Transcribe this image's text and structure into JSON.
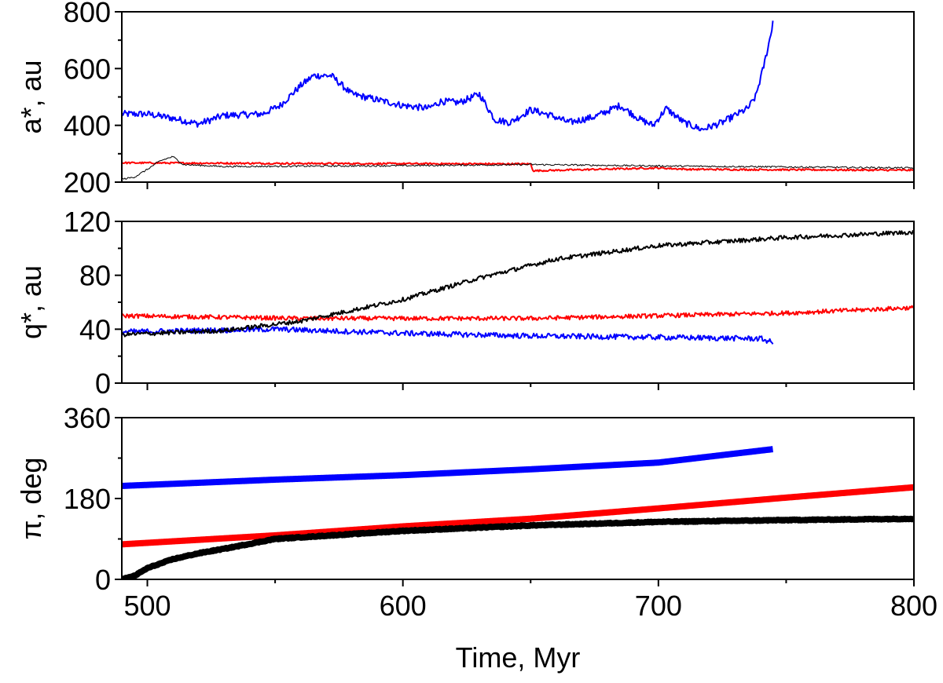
{
  "chart_data": {
    "type": "line",
    "xlabel": "Time, Myr",
    "xlim": [
      490,
      800
    ],
    "xticks": [
      500,
      600,
      700,
      800
    ],
    "colors": {
      "blue": "#0000ff",
      "red": "#ff0000",
      "black": "#000000"
    },
    "panels": [
      {
        "id": "a",
        "ylabel": "a*, au",
        "ylim": [
          200,
          800
        ],
        "yticks": [
          200,
          400,
          600,
          800
        ],
        "series": [
          {
            "name": "blue",
            "color": "#0000ff",
            "stroke": 2,
            "noise": 12,
            "points": [
              [
                490,
                440
              ],
              [
                500,
                440
              ],
              [
                510,
                425
              ],
              [
                520,
                405
              ],
              [
                530,
                435
              ],
              [
                545,
                440
              ],
              [
                552,
                470
              ],
              [
                560,
                540
              ],
              [
                565,
                575
              ],
              [
                572,
                575
              ],
              [
                580,
                510
              ],
              [
                590,
                490
              ],
              [
                600,
                470
              ],
              [
                610,
                460
              ],
              [
                615,
                485
              ],
              [
                622,
                480
              ],
              [
                630,
                510
              ],
              [
                636,
                420
              ],
              [
                642,
                410
              ],
              [
                650,
                455
              ],
              [
                658,
                435
              ],
              [
                665,
                410
              ],
              [
                675,
                430
              ],
              [
                685,
                470
              ],
              [
                693,
                420
              ],
              [
                698,
                400
              ],
              [
                703,
                460
              ],
              [
                710,
                410
              ],
              [
                717,
                385
              ],
              [
                725,
                410
              ],
              [
                735,
                460
              ],
              [
                738,
                500
              ],
              [
                741,
                600
              ],
              [
                744,
                720
              ],
              [
                745,
                780
              ]
            ]
          },
          {
            "name": "red",
            "color": "#ff0000",
            "stroke": 2,
            "noise": 3,
            "points": [
              [
                490,
                268
              ],
              [
                550,
                266
              ],
              [
                600,
                265
              ],
              [
                650,
                264
              ],
              [
                651,
                240
              ],
              [
                700,
                250
              ],
              [
                712,
                245
              ],
              [
                800,
                242
              ]
            ]
          },
          {
            "name": "black",
            "color": "#000000",
            "stroke": 1,
            "noise": 3,
            "points": [
              [
                490,
                210
              ],
              [
                495,
                218
              ],
              [
                500,
                245
              ],
              [
                505,
                275
              ],
              [
                510,
                290
              ],
              [
                514,
                262
              ],
              [
                530,
                255
              ],
              [
                600,
                258
              ],
              [
                650,
                262
              ],
              [
                700,
                257
              ],
              [
                800,
                250
              ]
            ]
          }
        ]
      },
      {
        "id": "q",
        "ylabel": "q*, au",
        "ylim": [
          0,
          120
        ],
        "yticks": [
          0,
          40,
          80,
          120
        ],
        "series": [
          {
            "name": "red",
            "color": "#ff0000",
            "stroke": 2,
            "noise": 1.6,
            "points": [
              [
                490,
                50
              ],
              [
                560,
                48
              ],
              [
                600,
                48
              ],
              [
                650,
                48
              ],
              [
                700,
                50
              ],
              [
                750,
                52
              ],
              [
                800,
                56
              ]
            ]
          },
          {
            "name": "blue",
            "color": "#0000ff",
            "stroke": 2,
            "noise": 2,
            "points": [
              [
                490,
                38
              ],
              [
                550,
                40
              ],
              [
                600,
                37
              ],
              [
                650,
                35
              ],
              [
                700,
                34
              ],
              [
                740,
                33
              ],
              [
                745,
                30
              ]
            ]
          },
          {
            "name": "black",
            "color": "#000000",
            "stroke": 2,
            "noise": 1.6,
            "points": [
              [
                490,
                36
              ],
              [
                530,
                39
              ],
              [
                560,
                46
              ],
              [
                600,
                62
              ],
              [
                630,
                78
              ],
              [
                660,
                92
              ],
              [
                700,
                102
              ],
              [
                750,
                108
              ],
              [
                800,
                112
              ]
            ]
          }
        ]
      },
      {
        "id": "pi",
        "ylabel": "π, deg",
        "ylim": [
          0,
          360
        ],
        "yticks": [
          0,
          180,
          360
        ],
        "series": [
          {
            "name": "blue",
            "color": "#0000ff",
            "stroke": 8,
            "noise": 0,
            "points": [
              [
                490,
                208
              ],
              [
                550,
                222
              ],
              [
                600,
                232
              ],
              [
                650,
                245
              ],
              [
                700,
                260
              ],
              [
                745,
                290
              ]
            ]
          },
          {
            "name": "red",
            "color": "#ff0000",
            "stroke": 8,
            "noise": 0,
            "points": [
              [
                490,
                78
              ],
              [
                550,
                98
              ],
              [
                600,
                118
              ],
              [
                650,
                135
              ],
              [
                700,
                158
              ],
              [
                750,
                182
              ],
              [
                800,
                205
              ]
            ]
          },
          {
            "name": "black",
            "color": "#000000",
            "stroke": 8,
            "noise": 1,
            "points": [
              [
                490,
                0
              ],
              [
                495,
                8
              ],
              [
                500,
                25
              ],
              [
                510,
                45
              ],
              [
                520,
                58
              ],
              [
                530,
                68
              ],
              [
                550,
                90
              ],
              [
                600,
                108
              ],
              [
                650,
                120
              ],
              [
                700,
                128
              ],
              [
                750,
                132
              ],
              [
                800,
                135
              ]
            ]
          }
        ]
      }
    ]
  }
}
